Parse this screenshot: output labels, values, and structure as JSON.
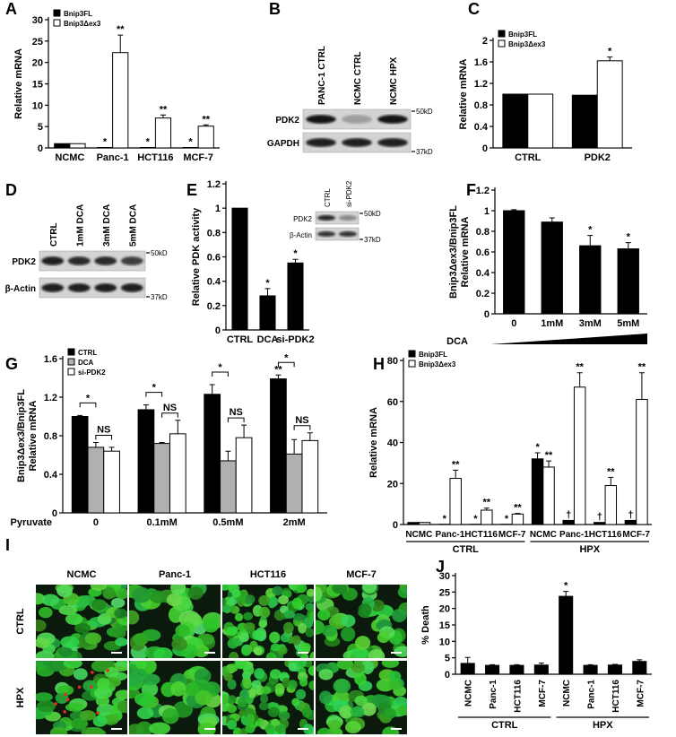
{
  "chart_data": [
    {
      "panel": "A",
      "type": "bar",
      "ylabel": "Relative mRNA",
      "categories": [
        "NCMC",
        "Panc-1",
        "HCT116",
        "MCF-7"
      ],
      "series": [
        {
          "name": "Bnip3FL",
          "color": "#000000",
          "values": [
            1,
            0.1,
            0.1,
            0.1
          ],
          "labels": [
            null,
            "*",
            "*",
            "*"
          ]
        },
        {
          "name": "Bnip3Δex3",
          "color": "#ffffff",
          "values": [
            1,
            22.3,
            7,
            5.1
          ],
          "errors": [
            null,
            4.1,
            0.7,
            0.3
          ],
          "labels": [
            null,
            "**",
            "**",
            "**"
          ]
        }
      ],
      "ylim": [
        0,
        30
      ],
      "yticks": [
        0,
        5,
        10,
        15,
        20,
        25,
        30
      ],
      "legend": "upper-left"
    },
    {
      "panel": "C",
      "type": "bar",
      "ylabel": "Relative mRNA",
      "categories": [
        "CTRL",
        "PDK2"
      ],
      "series": [
        {
          "name": "Bnip3FL",
          "color": "#000000",
          "values": [
            1,
            0.98
          ]
        },
        {
          "name": "Bnip3Δex3",
          "color": "#ffffff",
          "values": [
            1,
            1.62
          ],
          "errors": [
            null,
            0.07
          ],
          "labels": [
            null,
            "*"
          ]
        }
      ],
      "ylim": [
        0,
        2
      ],
      "yticks": [
        0,
        0.4,
        0.8,
        1.2,
        1.6,
        2
      ],
      "legend": "upper-left"
    },
    {
      "panel": "E",
      "type": "bar",
      "ylabel": "Relative PDK activity",
      "categories": [
        "CTRL",
        "DCA",
        "si-PDK2"
      ],
      "color": "#000000",
      "values": [
        1,
        0.28,
        0.55
      ],
      "errors": [
        null,
        0.06,
        0.03
      ],
      "labels": [
        null,
        "*",
        "*"
      ],
      "ylim": [
        0,
        1.2
      ],
      "yticks": [
        0,
        0.2,
        0.4,
        0.6,
        0.8,
        1,
        1.2
      ],
      "inset_blot": {
        "lanes": [
          "CTRL",
          "si-PDK2"
        ],
        "rows": [
          "PDK2",
          "β-Actin"
        ],
        "markers": [
          "50kD",
          "37kD"
        ]
      }
    },
    {
      "panel": "F",
      "type": "bar",
      "ylabel": [
        "Bnip3Δex3/Bnip3FL",
        "Relative mRNA"
      ],
      "categories": [
        "0",
        "1mM",
        "3mM",
        "5mM"
      ],
      "color": "#000000",
      "values": [
        1,
        0.89,
        0.66,
        0.63
      ],
      "errors": [
        0.01,
        0.04,
        0.1,
        0.06
      ],
      "labels": [
        null,
        null,
        "*",
        "*"
      ],
      "ylim": [
        0,
        1.2
      ],
      "yticks": [
        0,
        0.2,
        0.4,
        0.6,
        0.8,
        1,
        1.2
      ],
      "xlabel": "DCA",
      "ramp": true
    },
    {
      "panel": "G",
      "type": "bar",
      "ylabel": [
        "Bnip3Δex3/Bnip3FL",
        "Relative mRNA"
      ],
      "categories": [
        "0",
        "0.1mM",
        "0.5mM",
        "2mM"
      ],
      "xlabel": "Pyruvate",
      "series": [
        {
          "name": "CTRL",
          "color": "#000000",
          "values": [
            1,
            1.07,
            1.23,
            1.39
          ],
          "errors": [
            0.01,
            0.05,
            0.1,
            0.04
          ],
          "labels": [
            null,
            null,
            null,
            "**"
          ]
        },
        {
          "name": "DCA",
          "color": "#b0b0b0",
          "values": [
            0.68,
            0.72,
            0.54,
            0.61
          ],
          "errors": [
            0.05,
            0.01,
            0.1,
            0.15
          ]
        },
        {
          "name": "si-PDK2",
          "color": "#ffffff",
          "values": [
            0.64,
            0.82,
            0.78,
            0.75
          ],
          "errors": [
            0.04,
            0.14,
            0.13,
            0.08
          ]
        }
      ],
      "brackets": [
        [
          "*",
          "NS"
        ],
        [
          "*",
          "NS"
        ],
        [
          "*",
          "NS"
        ],
        [
          "*",
          "NS"
        ]
      ],
      "ylim": [
        0,
        1.6
      ],
      "yticks": [
        0,
        0.4,
        0.8,
        1.2,
        1.6
      ],
      "legend": "upper-left"
    },
    {
      "panel": "H",
      "type": "bar",
      "ylabel": "Relative mRNA",
      "categories": [
        "NCMC",
        "Panc-1",
        "HCT116",
        "MCF-7",
        "NCMC",
        "Panc-1",
        "HCT116",
        "MCF-7"
      ],
      "groups": [
        "CTRL",
        "HPX"
      ],
      "series": [
        {
          "name": "Bnip3FL",
          "color": "#000000",
          "values": [
            1,
            0.1,
            0.1,
            0.1,
            32,
            2,
            1,
            2
          ],
          "errors": [
            null,
            null,
            null,
            null,
            3,
            null,
            null,
            null
          ],
          "labels": [
            null,
            "*",
            "*",
            "*",
            "*",
            "†",
            "†",
            "†"
          ]
        },
        {
          "name": "Bnip3Δex3",
          "color": "#ffffff",
          "values": [
            1,
            22.5,
            7,
            5.1,
            28,
            67,
            19,
            61
          ],
          "errors": [
            null,
            4,
            1,
            0.3,
            3,
            7,
            4,
            13
          ],
          "labels": [
            null,
            "**",
            "**",
            "**",
            "**",
            "**",
            "**",
            "**"
          ]
        }
      ],
      "ylim": [
        0,
        80
      ],
      "yticks": [
        0,
        20,
        40,
        60,
        80
      ],
      "legend": "upper-left"
    },
    {
      "panel": "J",
      "type": "bar",
      "ylabel": "% Death",
      "categories": [
        "NCMC",
        "Panc-1",
        "HCT116",
        "MCF-7",
        "NCMC",
        "Panc-1",
        "HCT116",
        "MCF-7"
      ],
      "groups": [
        "CTRL",
        "HPX"
      ],
      "xtick_rotation": 90,
      "color": "#000000",
      "values": [
        3.3,
        2.7,
        2.7,
        2.8,
        23.7,
        2.7,
        2.8,
        3.9
      ],
      "errors": [
        1.8,
        0.2,
        0.2,
        0.6,
        1.5,
        0.2,
        0.2,
        0.5
      ],
      "labels": [
        null,
        null,
        null,
        null,
        "*",
        null,
        null,
        null
      ],
      "ylim": [
        0,
        30
      ],
      "yticks": [
        0,
        5,
        10,
        15,
        20,
        25,
        30
      ]
    }
  ],
  "blots": [
    {
      "panel": "B",
      "lanes": [
        "PANC-1 CTRL",
        "NCMC CTRL",
        "NCMC HPX"
      ],
      "rows": [
        "PDK2",
        "GAPDH"
      ],
      "markers": [
        "50kD",
        "37kD"
      ]
    },
    {
      "panel": "D",
      "lanes": [
        "CTRL",
        "1mM DCA",
        "3mM DCA",
        "5mM DCA"
      ],
      "rows": [
        "PDK2",
        "β-Actin"
      ],
      "markers": [
        "50kD",
        "37kD"
      ]
    }
  ],
  "micrographs": {
    "panel": "I",
    "columns": [
      "NCMC",
      "Panc-1",
      "HCT116",
      "MCF-7"
    ],
    "rows": [
      "CTRL",
      "HPX"
    ]
  }
}
